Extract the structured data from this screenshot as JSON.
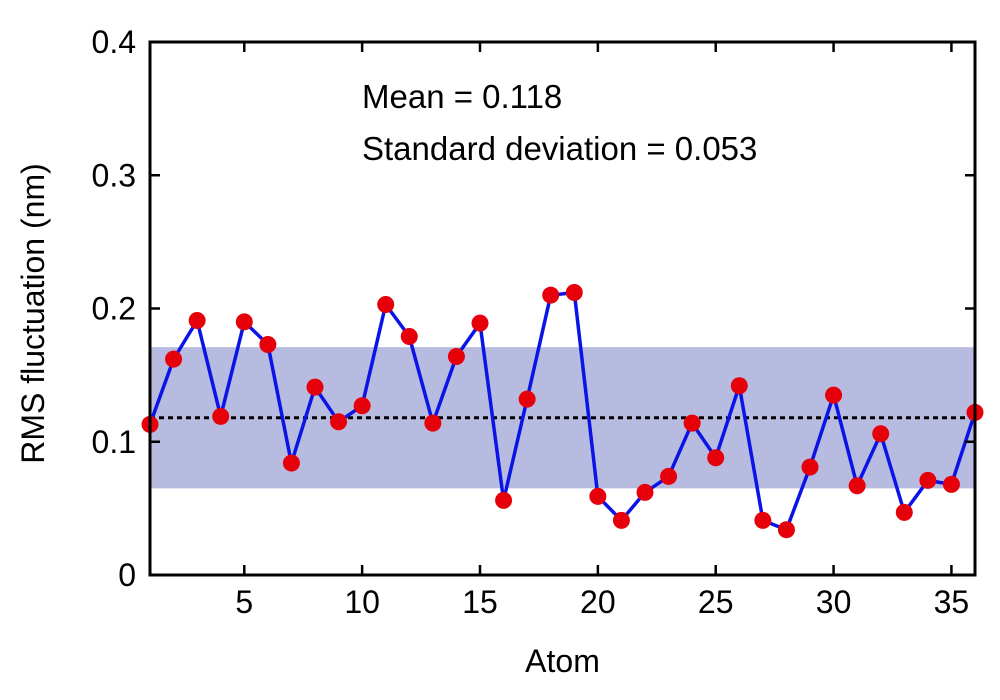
{
  "chart_data": {
    "type": "line",
    "xlabel": "Atom",
    "ylabel": "RMS fluctuation (nm)",
    "xlim": [
      1,
      36
    ],
    "ylim": [
      0,
      0.4
    ],
    "x_ticks": [
      5,
      10,
      15,
      20,
      25,
      30,
      35
    ],
    "y_ticks": [
      0,
      0.1,
      0.2,
      0.3,
      0.4
    ],
    "y_tick_labels": [
      "0",
      "0.1",
      "0.2",
      "0.3",
      "0.4"
    ],
    "grid": false,
    "annotations": [
      "Mean = 0.118",
      "Standard deviation = 0.053"
    ],
    "mean": 0.118,
    "std": 0.053,
    "band": [
      0.065,
      0.171
    ],
    "series": [
      {
        "x": [
          1,
          2,
          3,
          4,
          5,
          6,
          7,
          8,
          9,
          10,
          11,
          12,
          13,
          14,
          15,
          16,
          17,
          18,
          19,
          20,
          21,
          22,
          23,
          24,
          25,
          26,
          27,
          28,
          29,
          30,
          31,
          32,
          33,
          34,
          35,
          36
        ],
        "values": [
          0.113,
          0.162,
          0.191,
          0.119,
          0.19,
          0.173,
          0.084,
          0.141,
          0.115,
          0.127,
          0.203,
          0.179,
          0.114,
          0.164,
          0.189,
          0.056,
          0.132,
          0.21,
          0.212,
          0.059,
          0.041,
          0.062,
          0.074,
          0.114,
          0.088,
          0.142,
          0.041,
          0.034,
          0.081,
          0.135,
          0.067,
          0.106,
          0.047,
          0.071,
          0.068,
          0.122
        ]
      }
    ],
    "colors": {
      "line": "#0a14e6",
      "marker": "#e6000a",
      "band": "#b8bbe0",
      "mean_line": "#000000"
    }
  }
}
